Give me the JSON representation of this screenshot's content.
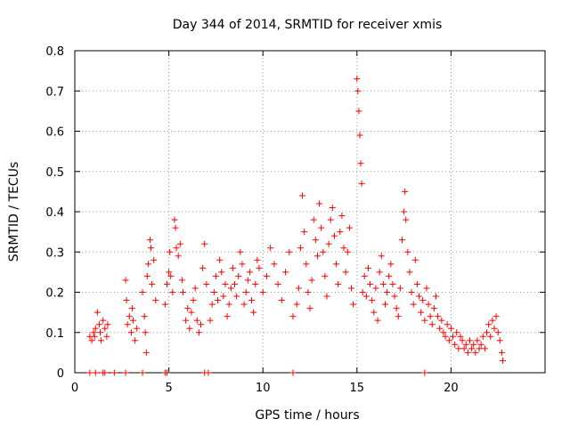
{
  "chart_data": {
    "type": "scatter",
    "title": "Day 344 of 2014, SRMTID for receiver xmis",
    "xlabel": "GPS time / hours",
    "ylabel": "SRMTID / TECUs",
    "xlim": [
      0,
      25
    ],
    "ylim": [
      0,
      0.8
    ],
    "xticks": [
      0,
      5,
      10,
      15,
      20
    ],
    "yticks": [
      0,
      0.1,
      0.2,
      0.3,
      0.4,
      0.5,
      0.6,
      0.7,
      0.8
    ],
    "xtick_labels": [
      "0",
      "5",
      "10",
      "15",
      "20"
    ],
    "ytick_labels": [
      "0",
      "0.1",
      "0.2",
      "0.3",
      "0.4",
      "0.5",
      "0.6",
      "0.7",
      "0.8"
    ],
    "grid": true,
    "marker": "+",
    "color": "#ff0000",
    "series": [
      {
        "name": "SRMTID",
        "points": [
          [
            0.8,
            0.09
          ],
          [
            0.9,
            0.08
          ],
          [
            1.0,
            0.1
          ],
          [
            1.05,
            0.09
          ],
          [
            1.1,
            0.11
          ],
          [
            1.2,
            0.15
          ],
          [
            1.3,
            0.12
          ],
          [
            1.35,
            0.1
          ],
          [
            1.4,
            0.08
          ],
          [
            1.5,
            0.13
          ],
          [
            1.6,
            0.11
          ],
          [
            1.7,
            0.09
          ],
          [
            1.75,
            0.12
          ],
          [
            2.7,
            0.23
          ],
          [
            2.75,
            0.18
          ],
          [
            2.8,
            0.12
          ],
          [
            2.9,
            0.14
          ],
          [
            3.0,
            0.1
          ],
          [
            3.05,
            0.16
          ],
          [
            3.1,
            0.13
          ],
          [
            3.2,
            0.08
          ],
          [
            3.3,
            0.11
          ],
          [
            3.6,
            0.2
          ],
          [
            3.7,
            0.14
          ],
          [
            3.75,
            0.1
          ],
          [
            3.8,
            0.05
          ],
          [
            3.85,
            0.24
          ],
          [
            3.9,
            0.27
          ],
          [
            4.0,
            0.33
          ],
          [
            4.05,
            0.31
          ],
          [
            4.1,
            0.22
          ],
          [
            4.2,
            0.28
          ],
          [
            4.3,
            0.18
          ],
          [
            4.8,
            0.17
          ],
          [
            4.9,
            0.22
          ],
          [
            5.0,
            0.25
          ],
          [
            5.05,
            0.3
          ],
          [
            5.1,
            0.24
          ],
          [
            5.2,
            0.2
          ],
          [
            5.3,
            0.38
          ],
          [
            5.35,
            0.36
          ],
          [
            5.4,
            0.31
          ],
          [
            5.5,
            0.29
          ],
          [
            5.6,
            0.32
          ],
          [
            5.7,
            0.23
          ],
          [
            5.75,
            0.2
          ],
          [
            5.9,
            0.13
          ],
          [
            6.0,
            0.16
          ],
          [
            6.1,
            0.11
          ],
          [
            6.2,
            0.15
          ],
          [
            6.3,
            0.18
          ],
          [
            6.4,
            0.21
          ],
          [
            6.5,
            0.13
          ],
          [
            6.6,
            0.1
          ],
          [
            6.7,
            0.12
          ],
          [
            6.8,
            0.26
          ],
          [
            6.9,
            0.32
          ],
          [
            7.0,
            0.22
          ],
          [
            7.2,
            0.13
          ],
          [
            7.3,
            0.17
          ],
          [
            7.4,
            0.2
          ],
          [
            7.5,
            0.24
          ],
          [
            7.6,
            0.18
          ],
          [
            7.7,
            0.28
          ],
          [
            7.8,
            0.25
          ],
          [
            7.9,
            0.19
          ],
          [
            8.0,
            0.22
          ],
          [
            8.1,
            0.14
          ],
          [
            8.2,
            0.17
          ],
          [
            8.3,
            0.21
          ],
          [
            8.4,
            0.26
          ],
          [
            8.5,
            0.22
          ],
          [
            8.6,
            0.19
          ],
          [
            8.7,
            0.24
          ],
          [
            8.8,
            0.3
          ],
          [
            8.9,
            0.27
          ],
          [
            9.0,
            0.17
          ],
          [
            9.1,
            0.2
          ],
          [
            9.2,
            0.23
          ],
          [
            9.3,
            0.25
          ],
          [
            9.4,
            0.18
          ],
          [
            9.5,
            0.15
          ],
          [
            9.6,
            0.22
          ],
          [
            9.7,
            0.28
          ],
          [
            9.8,
            0.26
          ],
          [
            10.0,
            0.2
          ],
          [
            10.2,
            0.24
          ],
          [
            10.4,
            0.31
          ],
          [
            10.6,
            0.27
          ],
          [
            10.8,
            0.22
          ],
          [
            11.0,
            0.18
          ],
          [
            11.2,
            0.25
          ],
          [
            11.4,
            0.3
          ],
          [
            11.6,
            0.14
          ],
          [
            11.8,
            0.17
          ],
          [
            11.9,
            0.21
          ],
          [
            12.0,
            0.31
          ],
          [
            12.1,
            0.44
          ],
          [
            12.2,
            0.35
          ],
          [
            12.3,
            0.27
          ],
          [
            12.4,
            0.2
          ],
          [
            12.5,
            0.16
          ],
          [
            12.6,
            0.23
          ],
          [
            12.7,
            0.38
          ],
          [
            12.8,
            0.33
          ],
          [
            12.9,
            0.29
          ],
          [
            13.0,
            0.42
          ],
          [
            13.1,
            0.36
          ],
          [
            13.2,
            0.3
          ],
          [
            13.3,
            0.24
          ],
          [
            13.4,
            0.19
          ],
          [
            13.5,
            0.32
          ],
          [
            13.6,
            0.38
          ],
          [
            13.7,
            0.41
          ],
          [
            13.8,
            0.34
          ],
          [
            13.9,
            0.27
          ],
          [
            14.0,
            0.22
          ],
          [
            14.1,
            0.35
          ],
          [
            14.2,
            0.39
          ],
          [
            14.3,
            0.31
          ],
          [
            14.4,
            0.25
          ],
          [
            14.5,
            0.3
          ],
          [
            14.6,
            0.36
          ],
          [
            14.7,
            0.21
          ],
          [
            14.8,
            0.17
          ],
          [
            15.0,
            0.73
          ],
          [
            15.05,
            0.7
          ],
          [
            15.1,
            0.65
          ],
          [
            15.15,
            0.59
          ],
          [
            15.2,
            0.52
          ],
          [
            15.25,
            0.47
          ],
          [
            15.3,
            0.2
          ],
          [
            15.4,
            0.24
          ],
          [
            15.5,
            0.19
          ],
          [
            15.6,
            0.26
          ],
          [
            15.7,
            0.22
          ],
          [
            15.8,
            0.18
          ],
          [
            15.9,
            0.15
          ],
          [
            16.0,
            0.21
          ],
          [
            16.1,
            0.13
          ],
          [
            16.2,
            0.25
          ],
          [
            16.3,
            0.29
          ],
          [
            16.4,
            0.22
          ],
          [
            16.5,
            0.17
          ],
          [
            16.6,
            0.2
          ],
          [
            16.7,
            0.24
          ],
          [
            16.8,
            0.27
          ],
          [
            16.9,
            0.22
          ],
          [
            17.0,
            0.19
          ],
          [
            17.1,
            0.16
          ],
          [
            17.2,
            0.14
          ],
          [
            17.3,
            0.21
          ],
          [
            17.4,
            0.33
          ],
          [
            17.5,
            0.4
          ],
          [
            17.55,
            0.45
          ],
          [
            17.6,
            0.38
          ],
          [
            17.7,
            0.3
          ],
          [
            17.8,
            0.25
          ],
          [
            17.9,
            0.2
          ],
          [
            18.0,
            0.17
          ],
          [
            18.1,
            0.28
          ],
          [
            18.2,
            0.22
          ],
          [
            18.3,
            0.19
          ],
          [
            18.4,
            0.15
          ],
          [
            18.5,
            0.18
          ],
          [
            18.6,
            0.13
          ],
          [
            18.7,
            0.21
          ],
          [
            18.8,
            0.17
          ],
          [
            18.9,
            0.14
          ],
          [
            19.0,
            0.12
          ],
          [
            19.1,
            0.16
          ],
          [
            19.2,
            0.19
          ],
          [
            19.3,
            0.14
          ],
          [
            19.4,
            0.11
          ],
          [
            19.5,
            0.13
          ],
          [
            19.6,
            0.1
          ],
          [
            19.7,
            0.09
          ],
          [
            19.8,
            0.12
          ],
          [
            19.9,
            0.08
          ],
          [
            20.0,
            0.11
          ],
          [
            20.1,
            0.09
          ],
          [
            20.2,
            0.07
          ],
          [
            20.3,
            0.1
          ],
          [
            20.4,
            0.06
          ],
          [
            20.5,
            0.09
          ],
          [
            20.6,
            0.08
          ],
          [
            20.7,
            0.06
          ],
          [
            20.8,
            0.07
          ],
          [
            20.9,
            0.05
          ],
          [
            21.0,
            0.08
          ],
          [
            21.1,
            0.06
          ],
          [
            21.2,
            0.07
          ],
          [
            21.3,
            0.05
          ],
          [
            21.4,
            0.08
          ],
          [
            21.5,
            0.06
          ],
          [
            21.6,
            0.07
          ],
          [
            21.7,
            0.09
          ],
          [
            21.8,
            0.06
          ],
          [
            21.9,
            0.1
          ],
          [
            22.0,
            0.12
          ],
          [
            22.1,
            0.09
          ],
          [
            22.2,
            0.13
          ],
          [
            22.3,
            0.11
          ],
          [
            22.4,
            0.14
          ],
          [
            22.5,
            0.1
          ],
          [
            22.6,
            0.08
          ],
          [
            22.7,
            0.05
          ],
          [
            22.75,
            0.03
          ],
          [
            0.8,
            0.0
          ],
          [
            1.1,
            0.0
          ],
          [
            1.5,
            0.0
          ],
          [
            1.6,
            0.0
          ],
          [
            2.1,
            0.0
          ],
          [
            2.7,
            0.0
          ],
          [
            3.6,
            0.0
          ],
          [
            4.8,
            0.0
          ],
          [
            4.9,
            0.0
          ],
          [
            6.9,
            0.0
          ],
          [
            7.1,
            0.0
          ],
          [
            11.6,
            0.0
          ],
          [
            18.6,
            0.0
          ]
        ]
      }
    ]
  }
}
